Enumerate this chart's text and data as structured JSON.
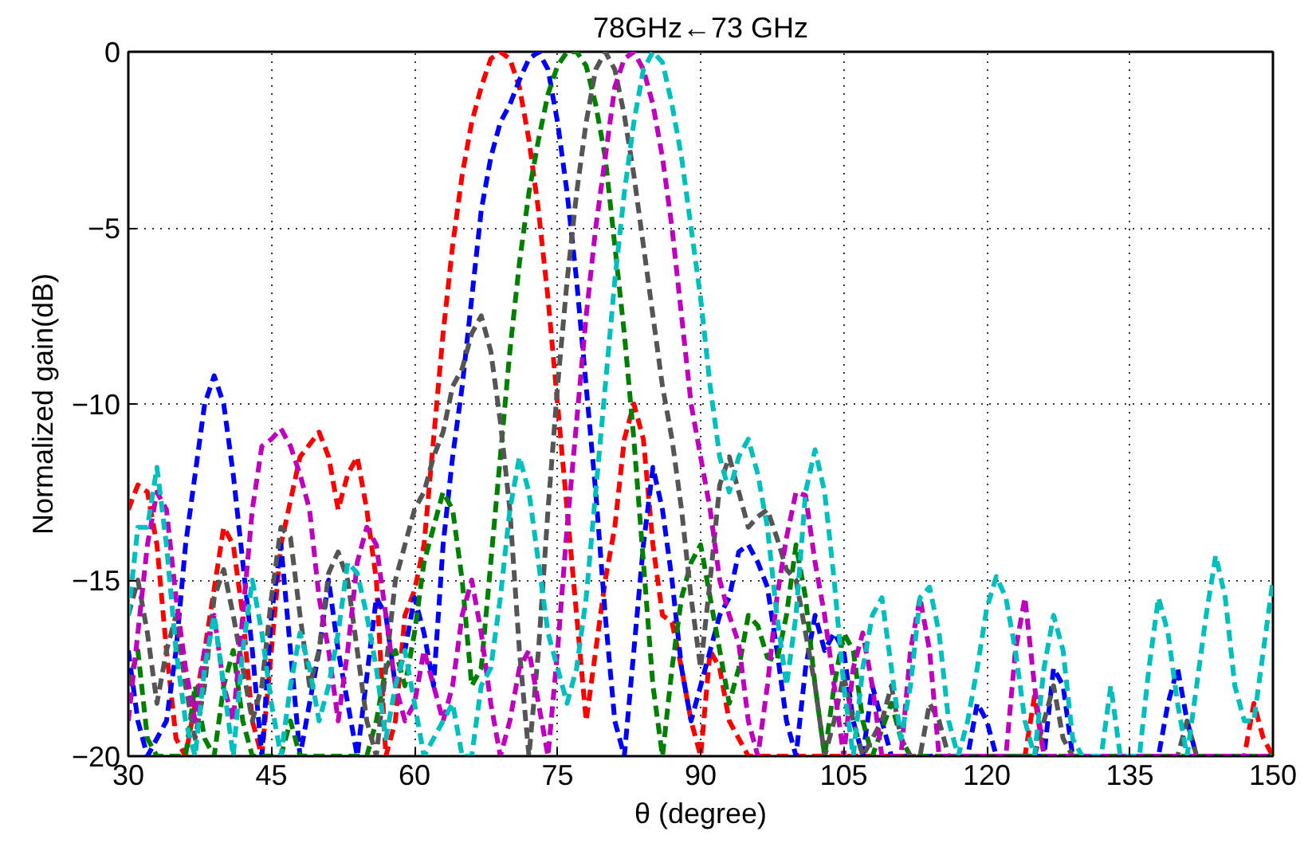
{
  "chart_data": {
    "type": "line",
    "xlabel": "θ (degree)",
    "ylabel": "Normalized gain(dB)",
    "annotations": [
      "78GHz←73 GHz"
    ],
    "xlim": [
      30,
      150
    ],
    "ylim": [
      -20,
      0
    ],
    "xticks": [
      30,
      45,
      60,
      75,
      90,
      105,
      120,
      135,
      150
    ],
    "yticks": [
      -20,
      -15,
      -10,
      -5,
      0
    ],
    "grid": true,
    "line_style": "dashed",
    "series": [
      {
        "color": "#ff0000",
        "x": [
          30,
          31,
          32,
          33,
          34,
          35,
          36,
          38,
          40,
          41,
          42,
          43,
          44,
          46,
          48,
          50,
          51,
          52,
          53,
          54,
          55,
          56,
          57,
          58,
          59,
          60,
          61,
          62,
          63,
          64,
          65,
          66,
          67,
          68,
          69,
          70,
          71,
          72,
          73,
          74,
          75,
          76,
          77,
          78,
          79,
          80,
          81,
          82,
          83,
          84,
          85,
          86,
          87,
          88,
          89,
          90,
          91,
          92,
          93,
          95,
          124,
          125,
          126,
          147,
          148,
          149,
          150
        ],
        "values": [
          -13,
          -12.3,
          -12.5,
          -14,
          -17,
          -19.5,
          -20,
          -17,
          -13.5,
          -14,
          -16,
          -19,
          -20,
          -14,
          -11.5,
          -10.8,
          -11.5,
          -13,
          -12,
          -11.5,
          -13,
          -15,
          -20,
          -19,
          -16,
          -15.3,
          -14,
          -11,
          -8,
          -5.5,
          -3.5,
          -2,
          -1,
          -0.2,
          0,
          -0.2,
          -1,
          -2.5,
          -4.5,
          -7,
          -10,
          -13,
          -16,
          -19,
          -17,
          -15,
          -13.5,
          -11,
          -10,
          -11,
          -14,
          -16,
          -16.2,
          -17.5,
          -19,
          -20,
          -17,
          -17.5,
          -19,
          -20,
          -20,
          -18.3,
          -20,
          -20,
          -18.5,
          -19.5,
          -20
        ]
      },
      {
        "color": "#0000ff",
        "x": [
          30,
          31,
          32,
          34,
          35,
          36,
          37,
          38,
          39,
          40,
          41,
          42,
          43,
          44,
          45,
          46,
          47,
          48,
          50,
          51,
          52,
          54,
          56,
          57,
          58,
          59,
          60,
          61,
          62,
          63,
          64,
          65,
          66,
          67,
          68,
          69,
          70,
          71,
          72,
          73,
          74,
          75,
          76,
          77,
          78,
          79,
          80,
          81,
          82,
          83,
          84,
          85,
          86,
          87,
          88,
          89,
          90,
          91,
          92,
          93,
          94,
          95,
          96,
          97,
          98,
          99,
          100,
          101,
          102,
          103,
          104,
          105,
          106,
          107,
          108,
          109,
          110,
          118,
          119,
          120,
          121,
          126,
          127,
          128,
          129,
          138,
          139,
          140,
          141,
          142,
          150
        ],
        "values": [
          -17,
          -19,
          -20,
          -19,
          -17,
          -14,
          -12,
          -10,
          -9.2,
          -10,
          -12,
          -14.5,
          -17,
          -20,
          -16,
          -14,
          -17,
          -20,
          -17,
          -15,
          -17,
          -20,
          -15.5,
          -16,
          -18,
          -17,
          -15.5,
          -16.5,
          -18,
          -14,
          -11.5,
          -9.5,
          -7,
          -4.5,
          -3,
          -2,
          -1.5,
          -0.8,
          -0.2,
          0,
          -0.5,
          -2,
          -4,
          -6.5,
          -9.5,
          -12.5,
          -16,
          -19,
          -20,
          -17,
          -14,
          -11.8,
          -13,
          -15,
          -17.5,
          -19,
          -18,
          -17,
          -16,
          -15.5,
          -14.2,
          -14,
          -14.5,
          -15.2,
          -17,
          -19,
          -20,
          -17.5,
          -16,
          -17,
          -16.5,
          -17,
          -19,
          -20,
          -18,
          -19,
          -20,
          -20,
          -18.5,
          -19,
          -20,
          -20,
          -17.5,
          -18,
          -20,
          -20,
          -18.5,
          -17.5,
          -19,
          -20,
          -20
        ]
      },
      {
        "color": "#008000",
        "x": [
          30,
          31,
          32,
          33,
          36,
          37,
          38,
          39,
          40,
          41,
          42,
          43,
          46,
          47,
          48,
          55,
          56,
          57,
          58,
          59,
          60,
          61,
          62,
          63,
          64,
          65,
          66,
          67,
          68,
          69,
          70,
          71,
          72,
          73,
          74,
          75,
          76,
          77,
          78,
          79,
          80,
          81,
          82,
          83,
          84,
          85,
          86,
          87,
          88,
          89,
          90,
          91,
          92,
          93,
          94,
          95,
          96,
          97,
          98,
          99,
          100,
          101,
          102,
          103,
          104,
          105,
          106,
          107,
          108,
          110,
          111,
          112,
          150
        ],
        "values": [
          -18,
          -17,
          -19.5,
          -20,
          -20,
          -18,
          -19.5,
          -20,
          -18,
          -17,
          -19,
          -20,
          -20,
          -19,
          -20,
          -20,
          -19,
          -17.5,
          -17,
          -18,
          -16.5,
          -14.5,
          -13.5,
          -12.5,
          -13,
          -15,
          -18,
          -17.5,
          -14.5,
          -11.5,
          -8.5,
          -6,
          -4,
          -2.5,
          -1.2,
          -0.4,
          0,
          0,
          -0.4,
          -1.5,
          -3,
          -5.5,
          -8,
          -11,
          -14.5,
          -18,
          -20,
          -17.5,
          -15.5,
          -14.5,
          -14,
          -15.5,
          -17,
          -18.5,
          -17.5,
          -16,
          -16.3,
          -17.2,
          -17.3,
          -16,
          -14,
          -15.5,
          -18,
          -20,
          -18,
          -16.5,
          -17,
          -19,
          -20,
          -18.5,
          -19.5,
          -20,
          -20
        ]
      },
      {
        "color": "#555555",
        "x": [
          30,
          31,
          32,
          33,
          34,
          35,
          36,
          37,
          38,
          39,
          40,
          41,
          42,
          43,
          44,
          45,
          46,
          47,
          48,
          49,
          50,
          51,
          52,
          53,
          54,
          55,
          56,
          57,
          58,
          59,
          60,
          61,
          62,
          63,
          64,
          65,
          66,
          67,
          68,
          69,
          70,
          71,
          72,
          73,
          74,
          75,
          76,
          77,
          78,
          79,
          80,
          81,
          82,
          83,
          84,
          85,
          86,
          87,
          88,
          89,
          90,
          91,
          92,
          93,
          94,
          95,
          96,
          97,
          98,
          99,
          100,
          101,
          102,
          103,
          104,
          105,
          106,
          107,
          109,
          110,
          111,
          112,
          113,
          114,
          115,
          116,
          125,
          126,
          127,
          128,
          129,
          140,
          141,
          142,
          150
        ],
        "values": [
          -16,
          -15,
          -16.5,
          -18.5,
          -17,
          -16,
          -18,
          -19.5,
          -18,
          -15.5,
          -14.7,
          -16,
          -17.5,
          -19,
          -18,
          -15.5,
          -13.5,
          -13.8,
          -16,
          -18,
          -17,
          -14.8,
          -14.2,
          -15,
          -17,
          -19,
          -20,
          -17.5,
          -15,
          -14,
          -13,
          -12.5,
          -11.5,
          -10.8,
          -9.5,
          -9,
          -8,
          -7.5,
          -8.5,
          -10.5,
          -13,
          -17,
          -20,
          -17,
          -13,
          -9.5,
          -6.5,
          -4,
          -2,
          -0.5,
          0,
          -0.5,
          -1.8,
          -3.5,
          -5.5,
          -7.5,
          -9.5,
          -11,
          -13,
          -15.5,
          -17.5,
          -15,
          -12.3,
          -11.5,
          -12.5,
          -13.5,
          -13.2,
          -13,
          -13.8,
          -14.7,
          -15,
          -16.5,
          -18,
          -20,
          -19,
          -17.7,
          -19,
          -20,
          -19,
          -18,
          -19.5,
          -20,
          -20,
          -18.5,
          -19,
          -20,
          -20,
          -19,
          -18,
          -19.5,
          -20,
          -20,
          -19,
          -20,
          -20
        ]
      },
      {
        "color": "#bf00bf",
        "x": [
          30,
          31,
          32,
          33,
          34,
          35,
          36,
          37,
          38,
          39,
          40,
          41,
          42,
          43,
          44,
          45,
          46,
          47,
          48,
          49,
          50,
          51,
          52,
          53,
          54,
          55,
          56,
          57,
          58,
          59,
          60,
          61,
          62,
          63,
          64,
          65,
          66,
          67,
          68,
          69,
          70,
          71,
          72,
          73,
          74,
          75,
          76,
          77,
          78,
          79,
          80,
          81,
          82,
          83,
          84,
          85,
          86,
          87,
          88,
          89,
          90,
          91,
          92,
          93,
          94,
          95,
          96,
          97,
          98,
          99,
          100,
          101,
          102,
          103,
          104,
          105,
          106,
          107,
          108,
          109,
          111,
          112,
          113,
          114,
          115,
          122,
          123,
          124,
          125,
          126,
          150
        ],
        "values": [
          -19,
          -16.5,
          -14,
          -12.5,
          -13,
          -15.5,
          -17.5,
          -19,
          -17,
          -16,
          -18,
          -19,
          -16,
          -13,
          -11.2,
          -11,
          -10.7,
          -11.2,
          -12,
          -13,
          -15.5,
          -17,
          -19,
          -17,
          -14.5,
          -13.5,
          -14,
          -16,
          -18,
          -19,
          -18.5,
          -17,
          -18,
          -19,
          -18,
          -16,
          -15,
          -16.5,
          -18.5,
          -20,
          -19,
          -17.5,
          -17,
          -18.5,
          -20,
          -17,
          -13.5,
          -10.5,
          -7.5,
          -5,
          -3,
          -1,
          -0.2,
          0,
          -0.5,
          -1.5,
          -3,
          -5,
          -7.5,
          -10,
          -11.5,
          -13,
          -15,
          -16,
          -16.8,
          -19,
          -20,
          -18,
          -15.5,
          -13.8,
          -12.5,
          -12.6,
          -14.5,
          -16,
          -18,
          -20,
          -17.5,
          -16.5,
          -18,
          -20,
          -20,
          -17,
          -15.5,
          -17,
          -20,
          -20,
          -17,
          -15.5,
          -18,
          -20,
          -20
        ]
      },
      {
        "color": "#00bfbf",
        "x": [
          30,
          31,
          32,
          33,
          34,
          35,
          36,
          37,
          38,
          39,
          40,
          41,
          42,
          43,
          44,
          45,
          46,
          47,
          48,
          49,
          50,
          51,
          52,
          53,
          54,
          55,
          56,
          57,
          58,
          59,
          60,
          61,
          63,
          64,
          65,
          66,
          67,
          68,
          69,
          70,
          71,
          72,
          73,
          74,
          75,
          76,
          77,
          78,
          79,
          80,
          81,
          82,
          83,
          84,
          85,
          86,
          87,
          88,
          89,
          90,
          91,
          92,
          93,
          94,
          95,
          96,
          97,
          98,
          99,
          100,
          101,
          102,
          103,
          104,
          105,
          106,
          107,
          108,
          109,
          110,
          111,
          112,
          113,
          114,
          115,
          116,
          117,
          118,
          119,
          120,
          121,
          122,
          123,
          124,
          125,
          126,
          127,
          128,
          129,
          130,
          132,
          133,
          134,
          136,
          137,
          138,
          139,
          140,
          141,
          142,
          143,
          144,
          145,
          146,
          147,
          148,
          149,
          150
        ],
        "values": [
          -16,
          -13.5,
          -13.5,
          -11.8,
          -14,
          -17,
          -19,
          -20,
          -17.5,
          -16,
          -18,
          -20,
          -17,
          -15,
          -16.5,
          -18.5,
          -20,
          -18,
          -16.5,
          -17.5,
          -19,
          -18,
          -16.5,
          -14.5,
          -14.8,
          -16,
          -17.5,
          -19.5,
          -18,
          -17,
          -18.5,
          -20,
          -19,
          -18.5,
          -20,
          -20,
          -18,
          -17.5,
          -15.5,
          -13,
          -11.5,
          -12.5,
          -14.5,
          -16.5,
          -17.5,
          -18.5,
          -17.5,
          -15.5,
          -12.5,
          -9.5,
          -6.5,
          -4,
          -2,
          -0.5,
          0,
          -0.3,
          -1.5,
          -3,
          -5,
          -7,
          -9.5,
          -11.5,
          -12.5,
          -11.5,
          -11,
          -12,
          -13.5,
          -16,
          -18,
          -16,
          -12.5,
          -11.3,
          -12.5,
          -15,
          -18,
          -20,
          -17.5,
          -16,
          -15.5,
          -17.5,
          -19.5,
          -18,
          -15.5,
          -15.2,
          -16.5,
          -19,
          -20,
          -19,
          -17.5,
          -15.8,
          -14.9,
          -15.5,
          -17,
          -19,
          -20,
          -17.5,
          -16,
          -17,
          -19.5,
          -20,
          -20,
          -18,
          -20,
          -20,
          -17.5,
          -15.5,
          -16.5,
          -18.5,
          -20,
          -18,
          -16,
          -14.3,
          -15.5,
          -18,
          -19,
          -19,
          -17,
          -15
        ]
      }
    ]
  }
}
